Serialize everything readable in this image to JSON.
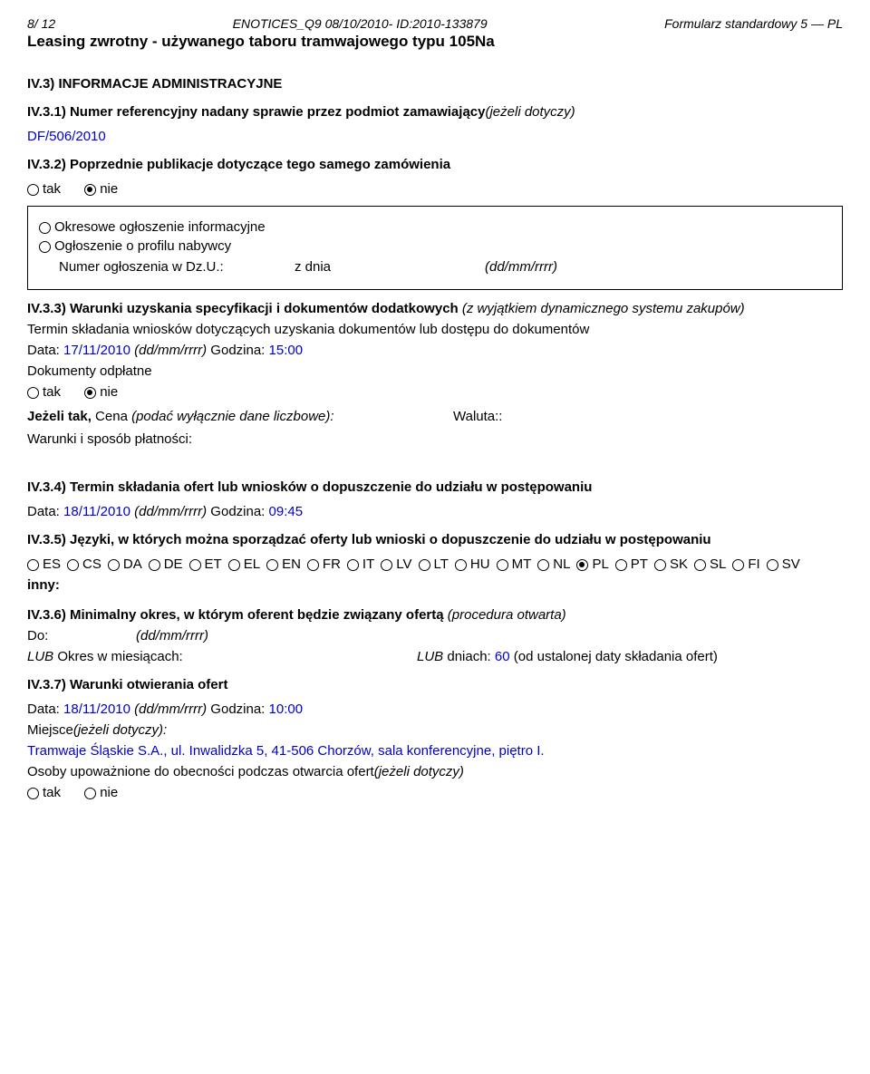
{
  "header": {
    "left": "8/ 12",
    "center": "ENOTICES_Q9 08/10/2010- ID:2010-133879",
    "right": "Formularz standardowy 5 — PL"
  },
  "subtitle": "Leasing zwrotny - używanego taboru tramwajowego typu 105Na",
  "iv3": {
    "title": "IV.3) INFORMACJE ADMINISTRACYJNE",
    "s1": {
      "label_a": "IV.3.1) Numer referencyjny nadany sprawie przez podmiot zamawiający",
      "label_b": "(jeżeli dotyczy)",
      "value": "DF/506/2010"
    },
    "s2": {
      "label": "IV.3.2) Poprzednie publikacje dotyczące tego samego zamówienia",
      "yes": "tak",
      "no": "nie",
      "box_r1": "Okresowe ogłoszenie informacyjne",
      "box_r2": "Ogłoszenie o profilu nabywcy",
      "box_r3_a": "Numer ogłoszenia w Dz.U.:",
      "box_r3_b": "z dnia",
      "box_r3_c": "(dd/mm/rrrr)"
    },
    "s3": {
      "label_a": "IV.3.3) Warunki uzyskania specyfikacji i dokumentów dodatkowych ",
      "label_b": "(z wyjątkiem dynamicznego systemu zakupów)",
      "term_line": "Termin składania wniosków dotyczących uzyskania dokumentów lub dostępu do dokumentów",
      "data_label": "Data:",
      "data_val": " 17/11/2010 ",
      "data_fmt": "(dd/mm/rrrr)",
      "godz_label": " Godzina:",
      "godz_val": " 15:00",
      "docs": "Dokumenty odpłatne",
      "yes": "tak",
      "no": "nie",
      "price_a": "Jeżeli tak, ",
      "price_b": "Cena ",
      "price_c": "(podać wyłącznie dane liczbowe):",
      "currency": "Waluta::",
      "pay": "Warunki i sposób płatności:"
    },
    "s4": {
      "label": "IV.3.4) Termin składania ofert lub wniosków o dopuszczenie do udziału w postępowaniu",
      "data_label": "Data:",
      "data_val": " 18/11/2010 ",
      "data_fmt": "(dd/mm/rrrr)",
      "godz_label": " Godzina:",
      "godz_val": " 09:45"
    },
    "s5": {
      "label": "IV.3.5) Języki, w których można sporządzać oferty lub wnioski o dopuszczenie do udziału w postępowaniu",
      "langs": [
        "ES",
        "CS",
        "DA",
        "DE",
        "ET",
        "EL",
        "EN",
        "FR",
        "IT",
        "LV",
        "LT",
        "HU",
        "MT",
        "NL",
        "PL",
        "PT",
        "SK",
        "SL",
        "FI",
        "SV"
      ],
      "selected": "PL",
      "other": "inny:"
    },
    "s6": {
      "label_a": "IV.3.6) Minimalny okres, w którym oferent będzie związany ofertą ",
      "label_b": "(procedura otwarta)",
      "do": "Do:",
      "fmt": "(dd/mm/rrrr)",
      "lub1": "LUB ",
      "mies": "Okres w miesiącach:",
      "lub2": "LUB ",
      "dni": "dniach:",
      "dni_val": " 60 ",
      "dni_tail": "(od ustalonej daty składania ofert)"
    },
    "s7": {
      "label": "IV.3.7) Warunki otwierania ofert",
      "data_label": "Data:",
      "data_val": " 18/11/2010 ",
      "data_fmt": "(dd/mm/rrrr)",
      "godz_label": " Godzina:",
      "godz_val": " 10:00",
      "place_a": "Miejsce",
      "place_b": "(jeżeli dotyczy):",
      "place_val": "Tramwaje Śląskie S.A., ul. Inwalidzka 5, 41-506 Chorzów, sala konferencyjne, piętro I.",
      "auth_a": "Osoby upoważnione do obecności podczas otwarcia ofert",
      "auth_b": "(jeżeli dotyczy)",
      "yes": "tak",
      "no": "nie"
    }
  }
}
